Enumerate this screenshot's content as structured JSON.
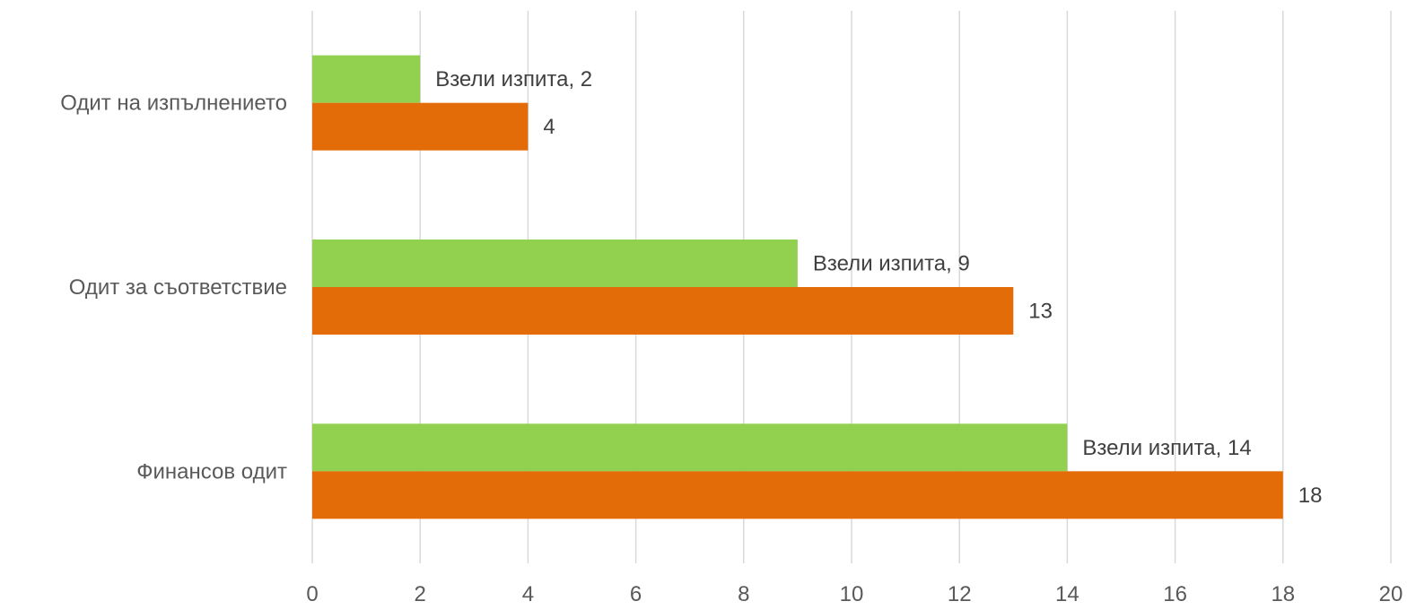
{
  "chart_data": {
    "type": "bar",
    "orientation": "horizontal",
    "categories": [
      "Одит на изпълнението",
      "Одит за съответствие",
      "Финансов одит"
    ],
    "series": [
      {
        "values": [
          2,
          9,
          14
        ],
        "color": "#92D050",
        "label_prefix": "Взели изпита, "
      },
      {
        "values": [
          4,
          13,
          18
        ],
        "color": "#E36C09",
        "label_prefix": ""
      }
    ],
    "data_labels": {
      "0": [
        "Взели изпита, 2",
        "Взели изпита, 9",
        "Взели изпита, 14"
      ],
      "1": [
        "4",
        "13",
        "18"
      ]
    },
    "xlim": [
      0,
      20
    ],
    "xticks": [
      0,
      2,
      4,
      6,
      8,
      10,
      12,
      14,
      16,
      18,
      20
    ],
    "xtick_labels": [
      "0",
      "2",
      "4",
      "6",
      "8",
      "10",
      "12",
      "14",
      "16",
      "18",
      "20"
    ],
    "grid": true,
    "gridline_color": "#D9D9D9",
    "legend": false
  }
}
